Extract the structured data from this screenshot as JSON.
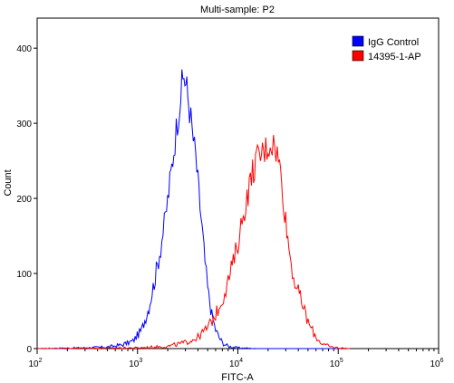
{
  "chart_data": {
    "type": "line",
    "title": "Multi-sample: P2",
    "xlabel": "FITC-A",
    "ylabel": "Count",
    "x_scale": "log",
    "xlim": [
      100,
      1000000
    ],
    "ylim": [
      0,
      440
    ],
    "x_ticks": [
      {
        "value": 100,
        "base": "10",
        "exp": "2"
      },
      {
        "value": 1000,
        "base": "10",
        "exp": "3"
      },
      {
        "value": 10000,
        "base": "10",
        "exp": "4"
      },
      {
        "value": 100000,
        "base": "10",
        "exp": "5"
      },
      {
        "value": 1000000,
        "base": "10",
        "exp": "6"
      }
    ],
    "y_ticks": [
      0,
      100,
      200,
      300,
      400
    ],
    "grid": false,
    "legend_position": "top-right",
    "series": [
      {
        "name": "IgG Control",
        "color": "#0000ff",
        "x": [
          100,
          300,
          500,
          700,
          900,
          1100,
          1300,
          1500,
          1700,
          1900,
          2100,
          2300,
          2500,
          2700,
          2900,
          3100,
          3300,
          3500,
          3800,
          4100,
          4400,
          4700,
          5000,
          5500,
          6000,
          6500,
          7000,
          8000,
          10000,
          15000,
          30000,
          100000
        ],
        "y": [
          0,
          1,
          2,
          5,
          10,
          25,
          55,
          95,
          135,
          175,
          220,
          265,
          305,
          340,
          365,
          345,
          320,
          290,
          255,
          205,
          160,
          115,
          80,
          45,
          25,
          15,
          8,
          3,
          1,
          0,
          0,
          0
        ]
      },
      {
        "name": "14395-1-AP",
        "color": "#ff0000",
        "x": [
          100,
          1000,
          2000,
          3000,
          4000,
          5000,
          6000,
          7000,
          8000,
          9000,
          10000,
          11000,
          12000,
          13000,
          14000,
          15000,
          16000,
          18000,
          20000,
          22000,
          24000,
          26000,
          28000,
          30000,
          33000,
          36000,
          40000,
          45000,
          50000,
          60000,
          70000,
          85000,
          100000,
          130000
        ],
        "y": [
          0,
          1,
          3,
          8,
          15,
          28,
          45,
          65,
          90,
          115,
          140,
          170,
          195,
          215,
          235,
          248,
          255,
          262,
          270,
          275,
          265,
          245,
          210,
          170,
          125,
          95,
          75,
          55,
          35,
          15,
          6,
          2,
          1,
          0
        ]
      }
    ]
  }
}
